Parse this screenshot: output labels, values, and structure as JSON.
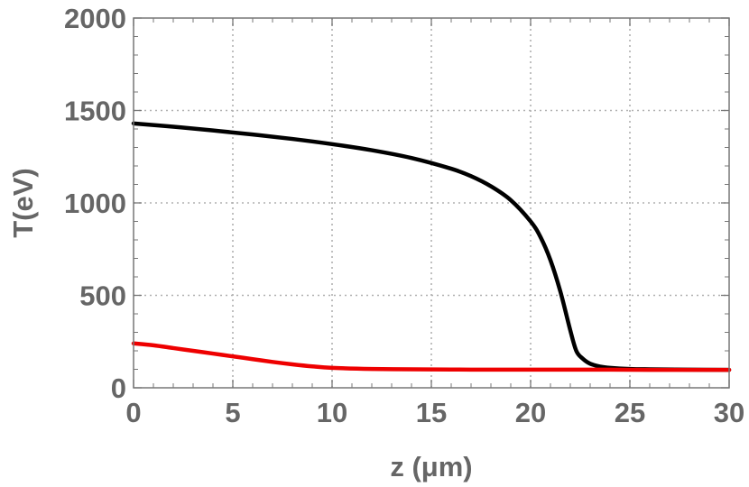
{
  "chart_data": {
    "type": "line",
    "xlabel": "z (μm)",
    "ylabel": "T(eV)",
    "xlim": [
      0,
      30
    ],
    "ylim": [
      0,
      2000
    ],
    "xticks": [
      0,
      5,
      10,
      15,
      20,
      25,
      30
    ],
    "yticks": [
      0,
      500,
      1000,
      1500,
      2000
    ],
    "xtick_labels": [
      "0",
      "5",
      "10",
      "15",
      "20",
      "25",
      "30"
    ],
    "ytick_labels": [
      "0",
      "500",
      "1000",
      "1500",
      "2000"
    ],
    "grid": true,
    "series": [
      {
        "color": "#000000",
        "x": [
          0,
          2,
          4,
          6,
          8,
          10,
          12,
          14,
          16,
          17,
          18,
          19,
          20,
          20.5,
          21,
          21.5,
          22,
          22.3,
          22.6,
          23,
          23.5,
          24,
          25,
          26,
          28,
          30
        ],
        "y": [
          1430,
          1412,
          1392,
          1370,
          1346,
          1318,
          1285,
          1243,
          1185,
          1145,
          1090,
          1015,
          900,
          815,
          690,
          520,
          310,
          200,
          160,
          130,
          115,
          108,
          102,
          100,
          98,
          97
        ]
      },
      {
        "color": "#ee0000",
        "x": [
          0,
          1,
          2,
          3,
          4,
          5,
          6,
          7,
          8,
          9,
          10,
          12,
          14,
          16,
          18,
          20,
          22,
          24,
          26,
          28,
          30
        ],
        "y": [
          240,
          230,
          215,
          200,
          185,
          170,
          155,
          140,
          127,
          116,
          108,
          102,
          100,
          99,
          98,
          98,
          98,
          98,
          97,
          97,
          97
        ]
      }
    ]
  }
}
